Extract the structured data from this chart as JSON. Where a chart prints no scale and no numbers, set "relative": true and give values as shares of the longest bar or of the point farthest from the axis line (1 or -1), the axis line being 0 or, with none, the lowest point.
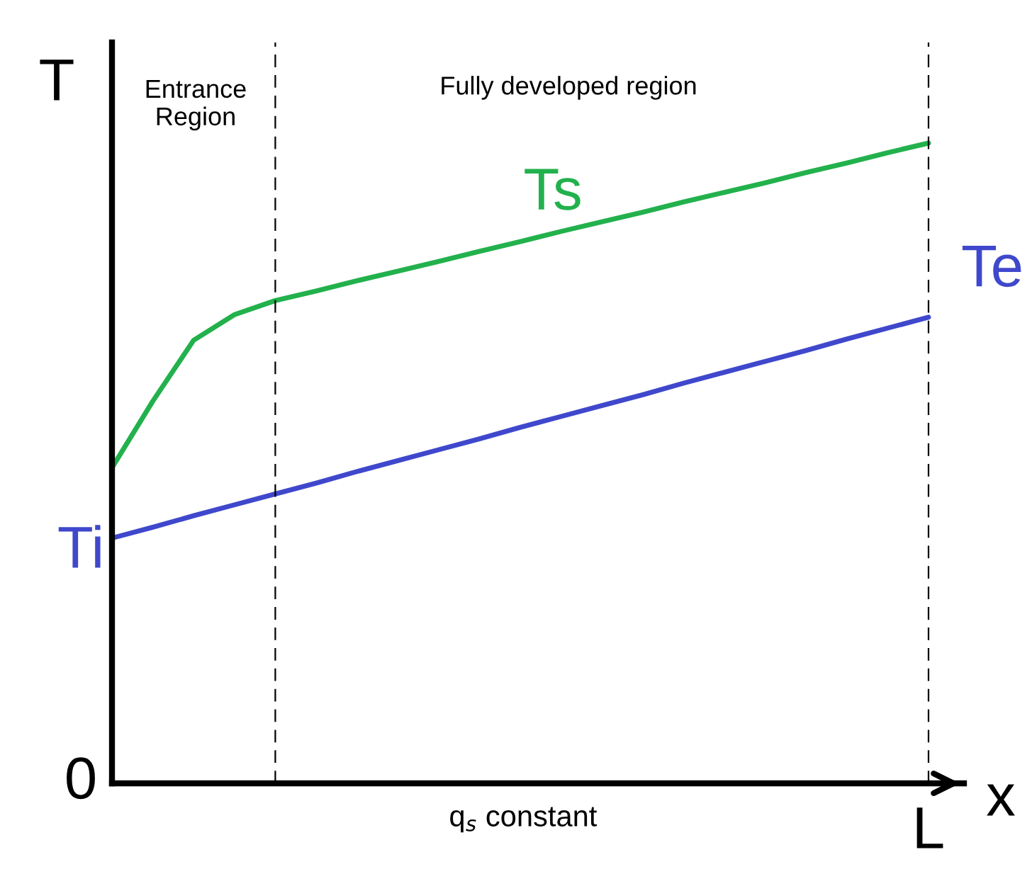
{
  "chart_data": {
    "type": "line",
    "relative": true,
    "ylabel": "T",
    "xlabel": "x",
    "categories": [
      null,
      null,
      null,
      null,
      null,
      null,
      null,
      null,
      null,
      null,
      null,
      null,
      null,
      null,
      null,
      null,
      null,
      null,
      null,
      null,
      null
    ],
    "series": [
      {
        "name": "Ts",
        "color": "#22b14c",
        "values": [
          0.493,
          0.597,
          0.692,
          0.732,
          0.754,
          0.769,
          0.785,
          0.8,
          0.815,
          0.831,
          0.846,
          0.862,
          0.877,
          0.892,
          0.908,
          0.923,
          0.938,
          0.954,
          0.969,
          0.985,
          1.0
        ]
      },
      {
        "name": "Te",
        "color": "#3f48cc",
        "values": [
          0.383,
          0.4,
          0.418,
          0.435,
          0.452,
          0.469,
          0.487,
          0.504,
          0.521,
          0.538,
          0.556,
          0.573,
          0.59,
          0.607,
          0.625,
          0.642,
          0.659,
          0.676,
          0.694,
          0.711,
          0.728
        ]
      }
    ],
    "annotations": [
      "Ti",
      "0",
      "L",
      "Entrance\nRegion",
      "Fully developed region",
      "q$_{s}$ constant"
    ],
    "grid": false,
    "legend": false,
    "marker": "none",
    "line_style": "solid"
  }
}
